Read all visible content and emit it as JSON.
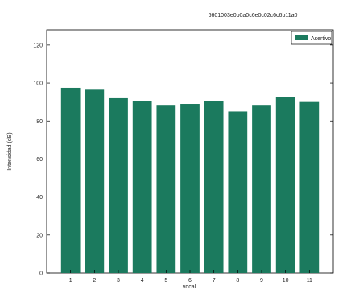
{
  "chart_data": {
    "type": "bar",
    "title": "6601003e0p0a0c6e0c02c6c6b11a0",
    "xlabel": "vocal",
    "ylabel": "Intensidad (dB)",
    "categories": [
      "1",
      "2",
      "3",
      "4",
      "5",
      "6",
      "7",
      "8",
      "9",
      "10",
      "11"
    ],
    "series": [
      {
        "name": "Asertivo",
        "values": [
          97.5,
          96.5,
          92,
          90.5,
          88.5,
          89,
          90.5,
          85,
          88.5,
          92.5,
          90
        ]
      }
    ],
    "ylim": [
      0,
      128
    ],
    "xlim": [
      0,
      12
    ],
    "yticks": [
      0,
      20,
      40,
      60,
      80,
      100,
      120
    ],
    "grid": false,
    "legend_position": "top-right",
    "colors": {
      "bar": "#1b7a5e",
      "axis": "#000000",
      "background": "#ffffff"
    }
  }
}
